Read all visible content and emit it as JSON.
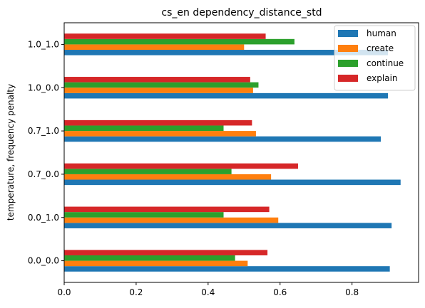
{
  "chart_data": {
    "type": "bar",
    "orientation": "horizontal",
    "title": "cs_en dependency_distance_std",
    "xlabel": "",
    "ylabel": "temperature, frequency penalty",
    "categories": [
      "0.0_0.0",
      "0.0_1.0",
      "0.7_0.0",
      "0.7_1.0",
      "1.0_0.0",
      "1.0_1.0"
    ],
    "xlim": [
      0,
      0.985
    ],
    "xticks": [
      "0.0",
      "0.2",
      "0.4",
      "0.6",
      "0.8"
    ],
    "xtick_values": [
      0,
      0.2,
      0.4,
      0.6,
      0.8
    ],
    "grid": false,
    "legend_position": "upper right",
    "series": [
      {
        "name": "human",
        "color": "#1f77b4",
        "values": [
          0.905,
          0.91,
          0.935,
          0.88,
          0.9,
          0.9
        ]
      },
      {
        "name": "create",
        "color": "#ff7f0e",
        "values": [
          0.51,
          0.595,
          0.575,
          0.533,
          0.525,
          0.5
        ]
      },
      {
        "name": "continue",
        "color": "#2ca02c",
        "values": [
          0.475,
          0.443,
          0.465,
          0.443,
          0.54,
          0.64
        ]
      },
      {
        "name": "explain",
        "color": "#d62728",
        "values": [
          0.565,
          0.57,
          0.65,
          0.522,
          0.517,
          0.56
        ]
      }
    ]
  }
}
